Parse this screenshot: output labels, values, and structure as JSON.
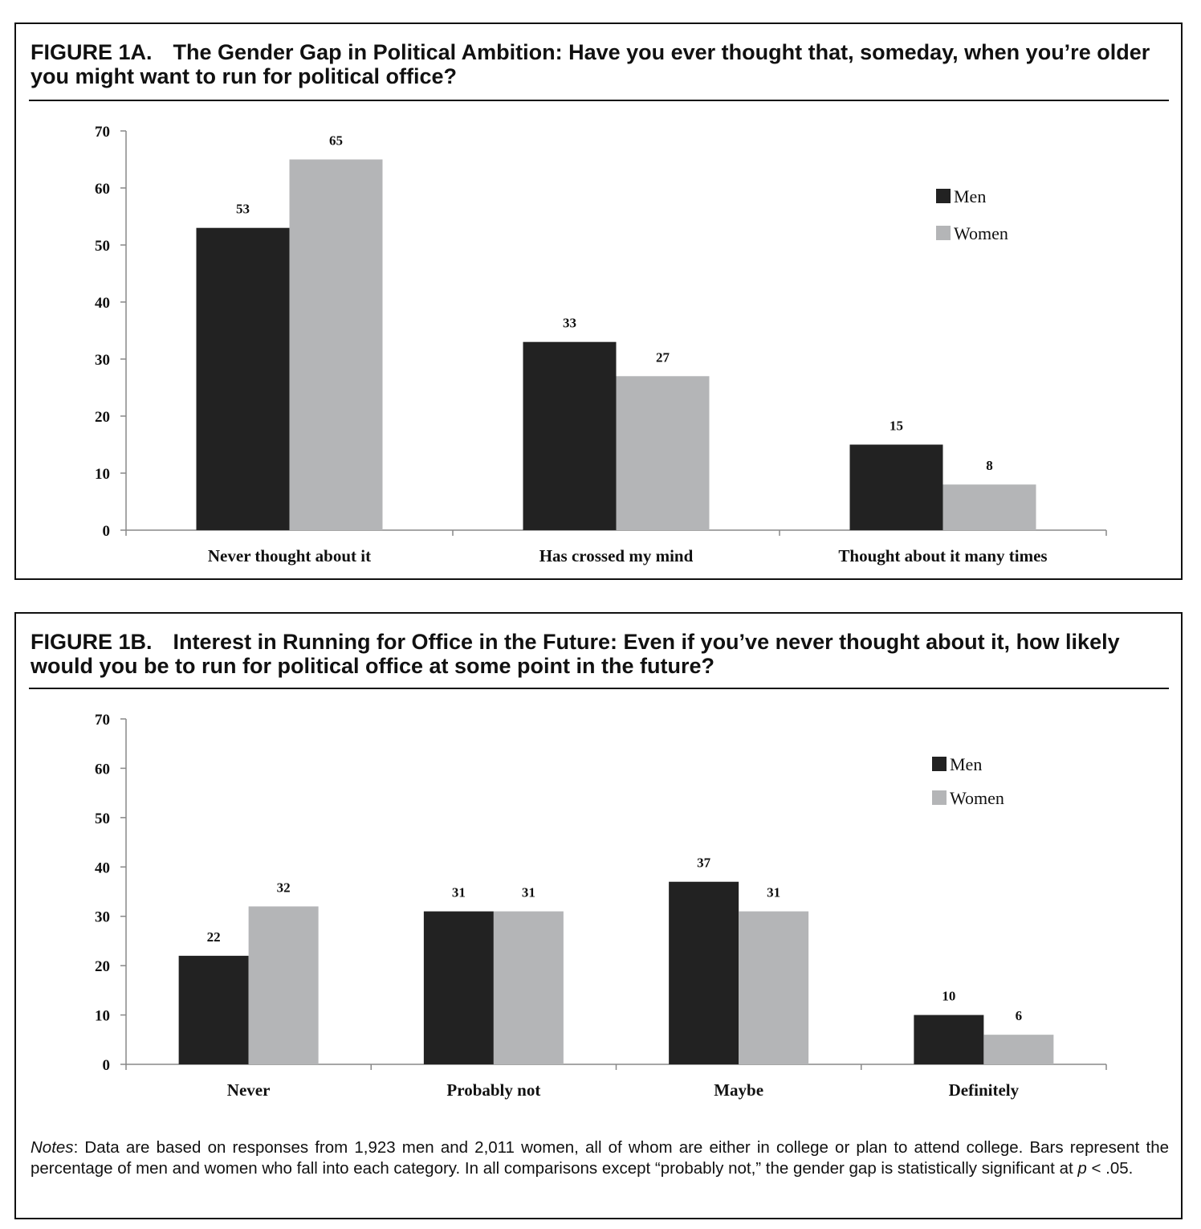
{
  "figures": [
    {
      "label": "FIGURE 1A.",
      "title": "The Gender Gap in Political Ambition: Have you ever thought that, someday, when you’re older you might want to run for political office?"
    },
    {
      "label": "FIGURE 1B.",
      "title": "Interest in Running for Office in the Future: Even if you’ve never thought about it, how likely would you be to run for political office at some point in the future?"
    }
  ],
  "colors": {
    "men": "#222222",
    "women": "#b4b5b7",
    "axis": "#888888",
    "text": "#111111"
  },
  "chart_data": [
    {
      "type": "bar",
      "categories": [
        "Never thought about it",
        "Has crossed my mind",
        "Thought about it many times"
      ],
      "series": [
        {
          "name": "Men",
          "values": [
            53,
            33,
            15
          ]
        },
        {
          "name": "Women",
          "values": [
            65,
            27,
            8
          ]
        }
      ],
      "title": "",
      "xlabel": "",
      "ylabel": "",
      "ylim": [
        0,
        70
      ],
      "yticks": [
        0,
        10,
        20,
        30,
        40,
        50,
        60,
        70
      ],
      "legend": "top-right",
      "grid": false,
      "data_labels": true
    },
    {
      "type": "bar",
      "categories": [
        "Never",
        "Probably not",
        "Maybe",
        "Definitely"
      ],
      "series": [
        {
          "name": "Men",
          "values": [
            22,
            31,
            37,
            10
          ]
        },
        {
          "name": "Women",
          "values": [
            32,
            31,
            31,
            6
          ]
        }
      ],
      "title": "",
      "xlabel": "",
      "ylabel": "",
      "ylim": [
        0,
        70
      ],
      "yticks": [
        0,
        10,
        20,
        30,
        40,
        50,
        60,
        70
      ],
      "legend": "top-right",
      "grid": false,
      "data_labels": true
    }
  ],
  "notes": {
    "label": "Notes",
    "text_before_p": ": Data are based on responses from 1,923 men and 2,011 women, all of whom are either in college or plan to attend college. Bars represent the percentage of men and women who fall into each category. In all comparisons except “probably not,” the gender gap is statistically significant at ",
    "p_symbol": "p",
    "text_after_p": " < .05."
  }
}
